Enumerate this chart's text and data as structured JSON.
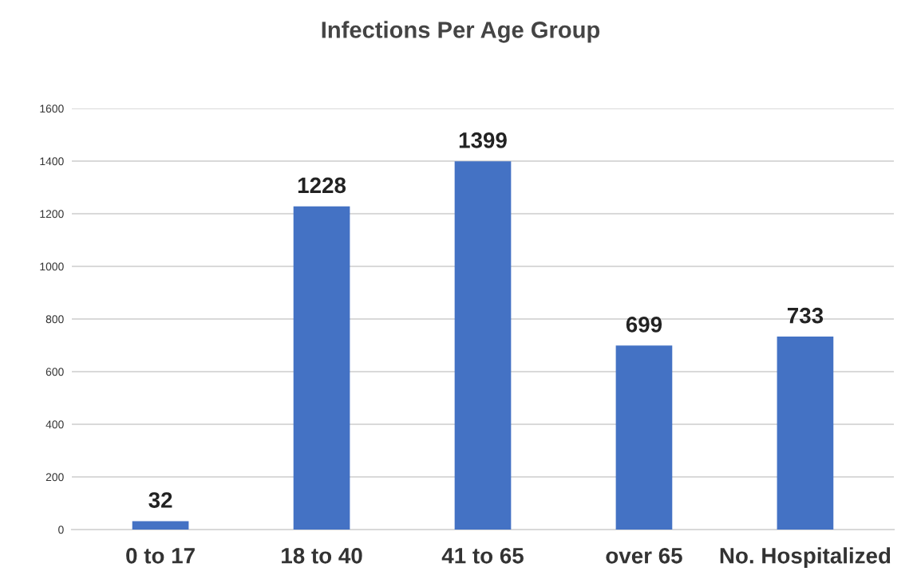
{
  "chart_data": {
    "type": "bar",
    "title": "Infections Per Age Group",
    "categories": [
      "0 to 17",
      "18 to 40",
      "41 to 65",
      "over 65",
      "No. Hospitalized"
    ],
    "values": [
      32,
      1228,
      1399,
      699,
      733
    ],
    "color": "#4472c4",
    "ylim": [
      0,
      1600
    ],
    "yticks": [
      0,
      200,
      400,
      600,
      800,
      1000,
      1200,
      1400,
      1600
    ],
    "grid": "y",
    "data_labels": true,
    "legend": false
  }
}
